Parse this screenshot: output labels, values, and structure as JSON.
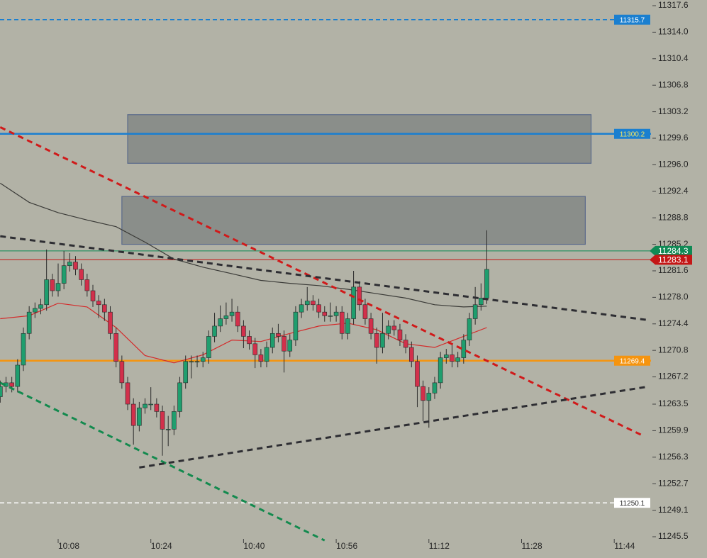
{
  "chart_data": {
    "type": "candlestick",
    "x": [
      "9:58",
      "9:59",
      "10:00",
      "10:01",
      "10:02",
      "10:03",
      "10:04",
      "10:05",
      "10:06",
      "10:07",
      "10:08",
      "10:09",
      "10:10",
      "10:11",
      "10:12",
      "10:13",
      "10:14",
      "10:15",
      "10:16",
      "10:17",
      "10:18",
      "10:19",
      "10:20",
      "10:21",
      "10:22",
      "10:23",
      "10:24",
      "10:25",
      "10:26",
      "10:27",
      "10:28",
      "10:29",
      "10:30",
      "10:31",
      "10:32",
      "10:33",
      "10:34",
      "10:35",
      "10:36",
      "10:37",
      "10:38",
      "10:39",
      "10:40",
      "10:41",
      "10:42",
      "10:43",
      "10:44",
      "10:45",
      "10:46",
      "10:47",
      "10:48",
      "10:49",
      "10:50",
      "10:51",
      "10:52",
      "10:53",
      "10:54",
      "10:55",
      "10:56",
      "10:57",
      "10:58",
      "10:59",
      "11:00",
      "11:01",
      "11:02",
      "11:03",
      "11:04",
      "11:05",
      "11:06",
      "11:07",
      "11:08",
      "11:09",
      "11:10",
      "11:11",
      "11:12",
      "11:13",
      "11:14",
      "11:15",
      "11:16",
      "11:17",
      "11:18",
      "11:19",
      "11:20",
      "11:21",
      "11:22"
    ],
    "open": [
      11264.5,
      11265.9,
      11266.4,
      11265.9,
      11268.8,
      11273.1,
      11276.0,
      11276.5,
      11277.0,
      11280.4,
      11278.9,
      11279.9,
      11282.3,
      11282.8,
      11281.8,
      11280.4,
      11278.9,
      11277.5,
      11277.0,
      11276.0,
      11273.1,
      11269.3,
      11266.4,
      11263.5,
      11260.6,
      11263.0,
      11263.5,
      11263.5,
      11262.5,
      11260.1,
      11260.1,
      11262.5,
      11266.4,
      11269.3,
      11269.3,
      11269.3,
      11269.8,
      11272.7,
      11274.1,
      11275.1,
      11275.5,
      11276.0,
      11274.1,
      11272.7,
      11271.7,
      11270.2,
      11269.3,
      11271.2,
      11273.1,
      11272.7,
      11270.7,
      11272.2,
      11276.0,
      11277.0,
      11277.5,
      11277.0,
      11276.0,
      11275.5,
      11275.5,
      11276.0,
      11273.1,
      11275.1,
      11279.4,
      11277.0,
      11275.1,
      11273.1,
      11271.2,
      11273.1,
      11274.1,
      11273.6,
      11272.2,
      11271.2,
      11269.3,
      11265.9,
      11264.0,
      11265.0,
      11266.4,
      11269.8,
      11270.2,
      11269.3,
      11269.8,
      11272.2,
      11275.1,
      11277.0,
      11277.9
    ],
    "high": [
      11266.7,
      11267.2,
      11267.2,
      11269.6,
      11273.9,
      11276.8,
      11277.3,
      11277.8,
      11284.5,
      11281.2,
      11282.6,
      11284.3,
      11284.0,
      11283.6,
      11282.6,
      11281.2,
      11279.7,
      11278.3,
      11277.8,
      11276.8,
      11273.9,
      11270.1,
      11267.2,
      11264.3,
      11263.8,
      11264.3,
      11265.8,
      11264.3,
      11263.3,
      11261.9,
      11263.3,
      11267.2,
      11270.1,
      11270.1,
      11270.1,
      11270.6,
      11273.5,
      11275.9,
      11276.9,
      11277.3,
      11277.8,
      11276.8,
      11274.9,
      11273.5,
      11272.5,
      11271.0,
      11272.0,
      11273.9,
      11274.4,
      11273.5,
      11273.0,
      11276.8,
      11277.8,
      11279.4,
      11278.3,
      11277.8,
      11276.8,
      11277.3,
      11276.8,
      11276.8,
      11275.9,
      11281.6,
      11280.2,
      11277.8,
      11275.9,
      11273.9,
      11275.9,
      11274.9,
      11274.9,
      11274.4,
      11273.0,
      11272.0,
      11270.1,
      11266.7,
      11265.8,
      11267.2,
      11270.6,
      11271.0,
      11271.6,
      11270.6,
      11273.0,
      11275.9,
      11279.4,
      11279.9,
      11287.1
    ],
    "low": [
      11263.7,
      11265.1,
      11265.1,
      11265.1,
      11268.0,
      11272.3,
      11275.2,
      11275.7,
      11276.2,
      11278.1,
      11278.1,
      11279.1,
      11281.5,
      11281.0,
      11279.6,
      11278.1,
      11276.7,
      11275.2,
      11274.8,
      11272.3,
      11268.5,
      11265.6,
      11262.7,
      11258.0,
      11259.8,
      11262.2,
      11262.7,
      11261.7,
      11256.5,
      11257.8,
      11259.3,
      11261.7,
      11265.6,
      11267.0,
      11268.5,
      11268.5,
      11269.0,
      11271.9,
      11273.3,
      11274.3,
      11274.7,
      11273.3,
      11271.1,
      11270.9,
      11268.4,
      11268.5,
      11268.5,
      11270.4,
      11271.9,
      11267.8,
      11269.9,
      11271.4,
      11275.2,
      11276.2,
      11276.2,
      11275.2,
      11274.7,
      11274.7,
      11274.7,
      11272.3,
      11272.3,
      11274.3,
      11276.2,
      11274.3,
      11272.3,
      11269.0,
      11270.4,
      11272.3,
      11272.8,
      11271.4,
      11270.4,
      11268.5,
      11263.1,
      11261.2,
      11260.3,
      11264.2,
      11265.6,
      11269.0,
      11268.5,
      11268.5,
      11269.0,
      11271.4,
      11274.3,
      11276.2,
      11277.1
    ],
    "close": [
      11265.9,
      11266.4,
      11265.9,
      11268.8,
      11273.1,
      11276.0,
      11276.5,
      11277.0,
      11280.4,
      11278.9,
      11279.9,
      11282.3,
      11282.8,
      11281.8,
      11280.4,
      11278.9,
      11277.5,
      11277.0,
      11276.0,
      11273.1,
      11269.3,
      11266.4,
      11263.5,
      11260.6,
      11263.0,
      11263.5,
      11263.5,
      11262.5,
      11260.1,
      11260.1,
      11262.5,
      11266.4,
      11269.3,
      11269.3,
      11269.3,
      11269.8,
      11272.7,
      11274.1,
      11275.1,
      11275.5,
      11276.0,
      11274.1,
      11272.7,
      11271.7,
      11270.2,
      11269.3,
      11271.2,
      11273.1,
      11272.7,
      11270.7,
      11272.2,
      11276.0,
      11277.0,
      11277.5,
      11277.0,
      11276.0,
      11275.5,
      11275.5,
      11276.0,
      11273.1,
      11275.1,
      11279.4,
      11277.0,
      11275.1,
      11273.1,
      11271.2,
      11273.1,
      11274.1,
      11273.6,
      11272.2,
      11271.2,
      11269.3,
      11265.9,
      11264.0,
      11265.0,
      11266.4,
      11269.8,
      11270.2,
      11269.3,
      11269.8,
      11272.2,
      11275.1,
      11277.0,
      11277.9,
      11281.8
    ],
    "up_color": "#1f9e6e",
    "down_color": "#d2304b",
    "ylim": [
      11245.5,
      11317.6
    ],
    "yticks": [
      11317.6,
      {
        "value": 11314,
        "label": "11314.0"
      },
      11310.4,
      11306.8,
      11303.2,
      11299.6,
      {
        "value": 11296,
        "label": "11296.0"
      },
      11292.4,
      11288.8,
      11285.2,
      11281.6,
      {
        "value": 11278,
        "label": "11278.0"
      },
      11274.4,
      11270.8,
      11267.2,
      11263.5,
      11259.9,
      11256.3,
      11252.7,
      11249.1,
      11245.5
    ],
    "xticks": [
      "10:08",
      "10:24",
      "10:40",
      "10:56",
      "11:12",
      "11:28",
      "11:44"
    ],
    "zones": [
      {
        "x": [
          "10:20",
          "11:40"
        ],
        "values": [
          11302.8,
          11296.2
        ]
      },
      {
        "x": [
          "10:19",
          "11:39"
        ],
        "values": [
          11291.7,
          11285.2
        ]
      }
    ],
    "moving_averages": [
      {
        "color": "#3b3b38",
        "x": [
          "9:58",
          "10:03",
          "10:08",
          "10:13",
          "10:18",
          "10:23",
          "10:28",
          "10:33",
          "10:38",
          "10:43",
          "10:48",
          "10:53",
          "10:58",
          "11:03",
          "11:08",
          "11:13",
          "11:18",
          "11:22"
        ],
        "values": [
          11293.5,
          11290.9,
          11289.5,
          11288.5,
          11287.6,
          11285.5,
          11283.2,
          11282.1,
          11281.2,
          11280.3,
          11279.9,
          11279.6,
          11279.1,
          11278.5,
          11277.9,
          11277.0,
          11276.7,
          11276.8
        ]
      },
      {
        "color": "#d42a2a",
        "x": [
          "9:58",
          "10:03",
          "10:08",
          "10:13",
          "10:18",
          "10:23",
          "10:28",
          "10:33",
          "10:38",
          "10:43",
          "10:48",
          "10:53",
          "10:58",
          "11:03",
          "11:08",
          "11:13",
          "11:18",
          "11:22"
        ],
        "values": [
          11275.1,
          11275.5,
          11277.2,
          11276.7,
          11273.9,
          11270.1,
          11269.1,
          11270.2,
          11272.2,
          11272.0,
          11273.1,
          11274.1,
          11274.5,
          11273.6,
          11271.7,
          11271.2,
          11272.7,
          11273.9
        ]
      }
    ],
    "trendlines": [
      {
        "color": "#d01a1a",
        "x": [
          "9:58",
          "11:49"
        ],
        "values": [
          11301.1,
          11259.2
        ]
      },
      {
        "color": "#2e2e33",
        "x": [
          "9:58",
          "11:50"
        ],
        "values": [
          11286.3,
          11274.9
        ]
      },
      {
        "color": "#138a4e",
        "x": [
          "9:58",
          "10:54"
        ],
        "values": [
          11266.4,
          11245.0
        ]
      },
      {
        "color": "#2e2e33",
        "x": [
          "10:22",
          "11:50"
        ],
        "values": [
          11254.9,
          11265.9
        ]
      }
    ],
    "price_lines": [
      {
        "value": 11315.7,
        "color": "#1a7fd0",
        "dashed": true,
        "tag": "plot",
        "text_color": "#ffffff"
      },
      {
        "value": 11300.2,
        "color": "#1a7fd0",
        "dashed": false,
        "tag": "plot",
        "text_color": "#f5e663"
      },
      {
        "value": 11284.3,
        "color": "#0f8a55",
        "dashed": false,
        "tag": "axis",
        "text_color": "#ffffff"
      },
      {
        "value": 11283.1,
        "color": "#c41616",
        "dashed": false,
        "tag": "axis",
        "text_color": "#ffffff"
      },
      {
        "value": 11269.4,
        "color": "#f5940f",
        "dashed": false,
        "tag": "plot",
        "text_color": "#ffffff"
      },
      {
        "value": 11250.1,
        "color": "#ffffff",
        "dashed": true,
        "tag": "plot",
        "text_color": "#222222"
      }
    ]
  }
}
